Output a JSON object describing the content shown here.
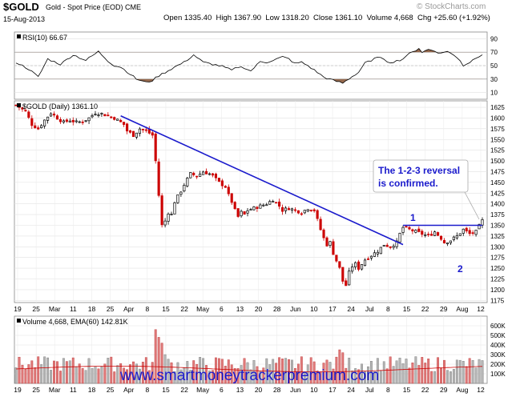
{
  "header": {
    "ticker": "$GOLD",
    "description": "Gold - Spot Price (EOD)",
    "exchange": "CME",
    "date": "15-Aug-2013",
    "credit": "© StockCharts.com",
    "ohlc": {
      "open_label": "Open",
      "open": "1335.40",
      "high_label": "High",
      "high": "1367.90",
      "low_label": "Low",
      "low": "1318.20",
      "close_label": "Close",
      "close": "1361.10",
      "volume_label": "Volume",
      "volume": "4,668",
      "chg_label": "Chg",
      "chg": "+25.60 (+1.92%)"
    }
  },
  "rsi_panel": {
    "legend": "RSI(10) 66.67",
    "ticks": [
      90,
      70,
      50,
      30,
      10
    ],
    "levels": [
      70,
      30
    ]
  },
  "price_panel": {
    "legend": "$GOLD (Daily) 1361.10",
    "ticks": [
      1625,
      1600,
      1575,
      1550,
      1525,
      1500,
      1475,
      1450,
      1425,
      1400,
      1375,
      1350,
      1325,
      1300,
      1275,
      1250,
      1225,
      1200,
      1175
    ],
    "annotation": [
      "The 1-2-3 reversal",
      "is confirmed."
    ],
    "label_1": "1",
    "label_2": "2"
  },
  "volume_panel": {
    "legend": "Volume 4,668, EMA(60) 142.81K",
    "ticks": [
      "600K",
      "500K",
      "400K",
      "300K",
      "200K",
      "100K"
    ]
  },
  "x_labels": [
    "19",
    "25",
    "Mar",
    "11",
    "18",
    "25",
    "Apr",
    "8",
    "15",
    "22",
    "May",
    "6",
    "13",
    "20",
    "28",
    "Jun",
    "10",
    "17",
    "24",
    "Jul",
    "8",
    "15",
    "22",
    "29",
    "Aug",
    "12"
  ],
  "watermark": "www.smartmoneytrackerpremium.com",
  "colors": {
    "up": "#000000",
    "down": "#cc0000",
    "trendline": "#1a1acc",
    "rsi_fill": "#8b5a3c",
    "watermark": "#1a1acc"
  },
  "chart_data": {
    "type": "candlestick",
    "title": "$GOLD Gold - Spot Price (EOD)",
    "ylim": [
      1170,
      1640
    ],
    "rsi_ylim": [
      0,
      100
    ],
    "volume_ylim": [
      0,
      700000
    ],
    "price_path": [
      [
        0,
        1630
      ],
      [
        3,
        1615
      ],
      [
        5,
        1585
      ],
      [
        7,
        1575
      ],
      [
        9,
        1595
      ],
      [
        11,
        1612
      ],
      [
        13,
        1600
      ],
      [
        15,
        1590
      ],
      [
        17,
        1595
      ],
      [
        19,
        1590
      ],
      [
        21,
        1592
      ],
      [
        23,
        1600
      ],
      [
        25,
        1612
      ],
      [
        27,
        1610
      ],
      [
        29,
        1605
      ],
      [
        31,
        1600
      ],
      [
        32,
        1595
      ],
      [
        34,
        1585
      ],
      [
        35,
        1570
      ],
      [
        37,
        1560
      ],
      [
        39,
        1575
      ],
      [
        41,
        1570
      ],
      [
        43,
        1560
      ],
      [
        44,
        1500
      ],
      [
        45,
        1420
      ],
      [
        46,
        1350
      ],
      [
        47,
        1360
      ],
      [
        48,
        1380
      ],
      [
        49,
        1375
      ],
      [
        50,
        1405
      ],
      [
        52,
        1430
      ],
      [
        53,
        1445
      ],
      [
        55,
        1470
      ],
      [
        57,
        1465
      ],
      [
        59,
        1475
      ],
      [
        61,
        1470
      ],
      [
        62,
        1465
      ],
      [
        64,
        1450
      ],
      [
        66,
        1440
      ],
      [
        67,
        1420
      ],
      [
        68,
        1405
      ],
      [
        69,
        1385
      ],
      [
        70,
        1370
      ],
      [
        71,
        1380
      ],
      [
        72,
        1375
      ],
      [
        73,
        1385
      ],
      [
        75,
        1390
      ],
      [
        77,
        1395
      ],
      [
        79,
        1400
      ],
      [
        81,
        1410
      ],
      [
        83,
        1395
      ],
      [
        84,
        1385
      ],
      [
        86,
        1390
      ],
      [
        88,
        1385
      ],
      [
        90,
        1380
      ],
      [
        92,
        1390
      ],
      [
        94,
        1385
      ],
      [
        96,
        1340
      ],
      [
        97,
        1320
      ],
      [
        98,
        1305
      ],
      [
        99,
        1310
      ],
      [
        100,
        1285
      ],
      [
        102,
        1250
      ],
      [
        103,
        1220
      ],
      [
        104,
        1210
      ],
      [
        105,
        1240
      ],
      [
        106,
        1255
      ],
      [
        107,
        1260
      ],
      [
        108,
        1250
      ],
      [
        110,
        1270
      ],
      [
        112,
        1280
      ],
      [
        114,
        1290
      ],
      [
        116,
        1305
      ],
      [
        118,
        1300
      ],
      [
        120,
        1310
      ],
      [
        121,
        1330
      ],
      [
        122,
        1345
      ],
      [
        124,
        1340
      ],
      [
        126,
        1335
      ],
      [
        128,
        1330
      ],
      [
        130,
        1325
      ],
      [
        132,
        1335
      ],
      [
        134,
        1320
      ],
      [
        135,
        1310
      ],
      [
        137,
        1315
      ],
      [
        139,
        1325
      ],
      [
        141,
        1340
      ],
      [
        143,
        1330
      ],
      [
        145,
        1335
      ],
      [
        147,
        1361
      ]
    ],
    "rsi_path": [
      [
        0,
        55
      ],
      [
        4,
        45
      ],
      [
        7,
        33
      ],
      [
        10,
        60
      ],
      [
        14,
        52
      ],
      [
        18,
        66
      ],
      [
        22,
        58
      ],
      [
        26,
        71
      ],
      [
        29,
        57
      ],
      [
        31,
        50
      ],
      [
        33,
        48
      ],
      [
        35,
        41
      ],
      [
        38,
        30
      ],
      [
        41,
        25
      ],
      [
        43,
        28
      ],
      [
        45,
        35
      ],
      [
        47,
        40
      ],
      [
        50,
        48
      ],
      [
        53,
        55
      ],
      [
        56,
        66
      ],
      [
        59,
        55
      ],
      [
        62,
        52
      ],
      [
        65,
        49
      ],
      [
        68,
        43
      ],
      [
        70,
        48
      ],
      [
        72,
        47
      ],
      [
        74,
        42
      ],
      [
        77,
        56
      ],
      [
        79,
        55
      ],
      [
        81,
        58
      ],
      [
        84,
        63
      ],
      [
        86,
        60
      ],
      [
        88,
        53
      ],
      [
        90,
        55
      ],
      [
        92,
        50
      ],
      [
        95,
        40
      ],
      [
        97,
        33
      ],
      [
        100,
        28
      ],
      [
        103,
        24
      ],
      [
        106,
        34
      ],
      [
        108,
        40
      ],
      [
        110,
        55
      ],
      [
        112,
        56
      ],
      [
        114,
        64
      ],
      [
        116,
        58
      ],
      [
        118,
        55
      ],
      [
        120,
        57
      ],
      [
        122,
        60
      ],
      [
        123,
        65
      ],
      [
        125,
        70
      ],
      [
        127,
        76
      ],
      [
        128,
        70
      ],
      [
        130,
        74
      ],
      [
        132,
        72
      ],
      [
        134,
        68
      ],
      [
        136,
        72
      ],
      [
        138,
        65
      ],
      [
        140,
        58
      ],
      [
        141,
        50
      ],
      [
        143,
        55
      ],
      [
        145,
        62
      ],
      [
        147,
        67
      ]
    ],
    "trendline": {
      "from": [
        33,
        1605
      ],
      "to": [
        122,
        1305
      ]
    },
    "resistance_level": 1350
  }
}
